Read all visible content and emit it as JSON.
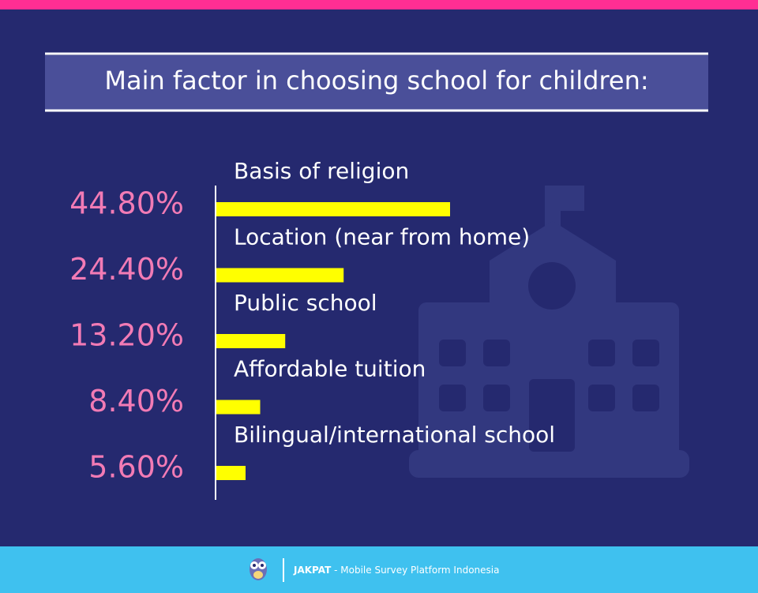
{
  "chart_data": {
    "type": "bar",
    "orientation": "horizontal",
    "title": "Main factor in choosing school for children:",
    "categories": [
      "Basis of religion",
      "Location (near from home)",
      "Public school",
      "Affordable tuition",
      "Bilingual/international school"
    ],
    "values": [
      44.8,
      24.4,
      13.2,
      8.4,
      5.6
    ],
    "value_labels": [
      "44.80%",
      "24.40%",
      "13.20%",
      "8.40%",
      "5.60%"
    ],
    "color": "#ffff00"
  },
  "footer": {
    "brand": "JAKPAT",
    "text": "- Mobile Survey Platform Indonesia"
  }
}
